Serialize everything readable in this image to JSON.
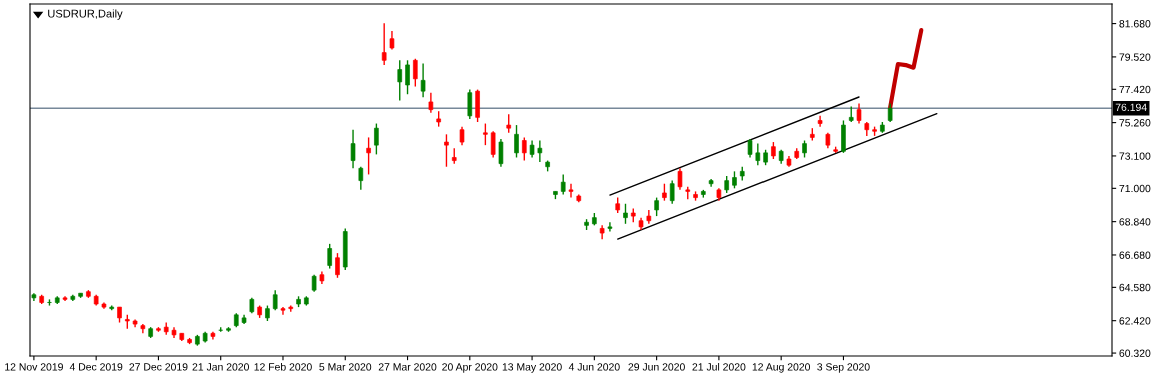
{
  "chart_data": {
    "type": "candlestick",
    "title": "USDRUR,Daily",
    "categories": [
      "12 Nov 2019",
      null,
      null,
      null,
      null,
      null,
      null,
      null,
      "4 Dec 2019",
      null,
      null,
      null,
      null,
      null,
      null,
      null,
      "27 Dec 2019",
      null,
      null,
      null,
      null,
      null,
      null,
      null,
      "21 Jan 2020",
      null,
      null,
      null,
      null,
      null,
      null,
      null,
      "12 Feb 2020",
      null,
      null,
      null,
      null,
      null,
      null,
      null,
      "5 Mar 2020",
      null,
      null,
      null,
      null,
      null,
      null,
      null,
      "27 Mar 2020",
      null,
      null,
      null,
      null,
      null,
      null,
      null,
      "20 Apr 2020",
      null,
      null,
      null,
      null,
      null,
      null,
      null,
      "13 May 2020",
      null,
      null,
      null,
      null,
      null,
      null,
      null,
      "4 Jun 2020",
      null,
      null,
      null,
      null,
      null,
      null,
      null,
      "29 Jun 2020",
      null,
      null,
      null,
      null,
      null,
      null,
      null,
      "21 Jul 2020",
      null,
      null,
      null,
      null,
      null,
      null,
      null,
      "12 Aug 2020",
      null,
      null,
      null,
      null,
      null,
      null,
      null,
      "3 Sep 2020",
      null,
      null,
      null,
      null,
      null,
      null,
      null,
      null,
      null,
      null,
      null,
      null,
      null,
      null,
      null,
      null,
      null,
      null,
      null,
      null,
      null,
      null,
      null,
      null,
      null,
      null,
      null,
      null,
      null,
      null,
      null,
      null,
      null,
      null
    ],
    "ohlc": [
      [
        63.9,
        64.2,
        63.7,
        64.1
      ],
      [
        64.0,
        64.1,
        63.5,
        63.6
      ],
      [
        63.6,
        63.8,
        63.4,
        63.6
      ],
      [
        63.6,
        64.0,
        63.5,
        63.9
      ],
      [
        63.9,
        64.0,
        63.7,
        63.8
      ],
      [
        63.8,
        64.1,
        63.7,
        64.0
      ],
      [
        64.0,
        64.2,
        63.9,
        64.2
      ],
      [
        64.3,
        64.4,
        63.9,
        64.0
      ],
      [
        64.0,
        64.1,
        63.4,
        63.5
      ],
      [
        63.5,
        63.6,
        63.2,
        63.3
      ],
      [
        63.2,
        63.4,
        63.1,
        63.3
      ],
      [
        63.3,
        63.3,
        62.3,
        62.6
      ],
      [
        62.5,
        62.8,
        61.9,
        62.4
      ],
      [
        62.4,
        62.5,
        62.0,
        62.2
      ],
      [
        62.1,
        62.2,
        61.6,
        61.9
      ],
      [
        61.4,
        62.0,
        61.3,
        61.9
      ],
      [
        61.9,
        62.0,
        61.7,
        61.8
      ],
      [
        62.0,
        62.3,
        61.5,
        61.7
      ],
      [
        61.8,
        62.0,
        61.3,
        61.5
      ],
      [
        61.6,
        61.6,
        61.1,
        61.2
      ],
      [
        61.2,
        61.3,
        60.9,
        61.0
      ],
      [
        60.9,
        61.5,
        60.8,
        61.4
      ],
      [
        61.1,
        61.7,
        61.0,
        61.6
      ],
      [
        61.6,
        61.7,
        61.2,
        61.4
      ],
      [
        61.8,
        62.0,
        61.7,
        61.8
      ],
      [
        61.8,
        62.0,
        61.7,
        61.9
      ],
      [
        62.1,
        62.9,
        62.0,
        62.8
      ],
      [
        62.3,
        62.8,
        62.2,
        62.6
      ],
      [
        63.0,
        63.9,
        62.9,
        63.8
      ],
      [
        63.3,
        63.4,
        62.6,
        62.8
      ],
      [
        62.6,
        63.4,
        62.4,
        63.2
      ],
      [
        63.2,
        64.4,
        63.1,
        64.1
      ],
      [
        63.2,
        63.3,
        62.8,
        63.1
      ],
      [
        63.3,
        63.4,
        63.0,
        63.2
      ],
      [
        63.5,
        64.0,
        63.3,
        63.8
      ],
      [
        63.5,
        64.0,
        63.4,
        63.9
      ],
      [
        64.4,
        65.4,
        64.3,
        65.3
      ],
      [
        65.4,
        65.6,
        64.8,
        65.0
      ],
      [
        66.0,
        67.4,
        65.8,
        67.1
      ],
      [
        66.5,
        66.8,
        65.2,
        65.4
      ],
      [
        65.9,
        68.4,
        65.7,
        68.2
      ],
      [
        72.8,
        74.8,
        72.3,
        73.9
      ],
      [
        71.5,
        72.4,
        70.9,
        72.3
      ],
      [
        73.6,
        74.3,
        71.9,
        73.3
      ],
      [
        73.8,
        75.2,
        73.2,
        74.9
      ],
      [
        79.8,
        81.7,
        79.0,
        79.3
      ],
      [
        80.7,
        81.2,
        80.0,
        80.1
      ],
      [
        77.9,
        79.3,
        76.7,
        78.7
      ],
      [
        77.7,
        79.3,
        77.1,
        79.0
      ],
      [
        79.3,
        79.4,
        77.6,
        78.1
      ],
      [
        77.3,
        79.1,
        76.9,
        78.0
      ],
      [
        76.6,
        77.2,
        75.9,
        76.1
      ],
      [
        75.5,
        76.0,
        75.0,
        75.3
      ],
      [
        74.0,
        74.5,
        72.4,
        73.8
      ],
      [
        73.0,
        73.6,
        72.6,
        72.8
      ],
      [
        74.8,
        75.0,
        73.8,
        74.0
      ],
      [
        75.7,
        77.4,
        75.5,
        77.2
      ],
      [
        77.3,
        77.4,
        75.3,
        75.6
      ],
      [
        74.6,
        75.2,
        73.8,
        74.5
      ],
      [
        74.6,
        74.7,
        73.0,
        73.2
      ],
      [
        72.6,
        74.2,
        72.4,
        74.0
      ],
      [
        75.1,
        75.8,
        74.6,
        74.9
      ],
      [
        73.3,
        75.1,
        73.0,
        74.5
      ],
      [
        74.1,
        74.3,
        72.8,
        73.3
      ],
      [
        73.2,
        74.1,
        73.0,
        73.8
      ],
      [
        73.3,
        74.1,
        72.7,
        73.6
      ],
      [
        72.4,
        72.8,
        72.1,
        72.7
      ],
      [
        70.6,
        70.8,
        70.3,
        70.8
      ],
      [
        70.8,
        71.9,
        70.6,
        71.4
      ],
      [
        70.9,
        71.3,
        70.4,
        70.8
      ],
      [
        70.5,
        70.6,
        70.1,
        70.2
      ],
      [
        68.6,
        69.0,
        68.3,
        68.8
      ],
      [
        68.7,
        69.4,
        68.6,
        69.1
      ],
      [
        68.4,
        68.6,
        67.7,
        68.1
      ],
      [
        68.4,
        68.8,
        68.2,
        68.5
      ],
      [
        70.0,
        70.4,
        69.4,
        69.6
      ],
      [
        69.1,
        70.0,
        68.7,
        69.4
      ],
      [
        69.4,
        69.7,
        68.8,
        69.2
      ],
      [
        68.9,
        69.1,
        68.3,
        68.5
      ],
      [
        69.2,
        69.6,
        68.7,
        68.9
      ],
      [
        69.6,
        70.4,
        69.2,
        70.2
      ],
      [
        70.7,
        71.3,
        70.2,
        70.4
      ],
      [
        70.2,
        71.5,
        70.0,
        71.3
      ],
      [
        72.1,
        72.3,
        70.9,
        71.1
      ],
      [
        70.9,
        71.1,
        70.3,
        70.8
      ],
      [
        70.6,
        70.8,
        70.2,
        70.4
      ],
      [
        70.6,
        70.9,
        70.4,
        70.8
      ],
      [
        71.3,
        71.6,
        71.1,
        71.5
      ],
      [
        70.9,
        71.0,
        70.2,
        70.4
      ],
      [
        70.9,
        71.8,
        70.7,
        71.5
      ],
      [
        71.2,
        72.1,
        71.0,
        71.7
      ],
      [
        71.8,
        72.4,
        71.5,
        72.1
      ],
      [
        73.2,
        74.2,
        73.0,
        74.1
      ],
      [
        72.8,
        73.9,
        72.5,
        73.3
      ],
      [
        72.7,
        73.5,
        72.5,
        73.3
      ],
      [
        73.7,
        74.0,
        72.9,
        73.1
      ],
      [
        72.8,
        73.5,
        72.6,
        73.4
      ],
      [
        72.9,
        73.1,
        72.4,
        72.5
      ],
      [
        73.4,
        73.6,
        72.9,
        73.0
      ],
      [
        73.3,
        74.1,
        73.0,
        73.9
      ],
      [
        74.5,
        74.9,
        74.1,
        74.3
      ],
      [
        75.4,
        75.7,
        75.0,
        75.2
      ],
      [
        74.5,
        74.6,
        73.6,
        73.8
      ],
      [
        73.5,
        73.7,
        73.3,
        73.4
      ],
      [
        73.4,
        75.4,
        73.3,
        75.1
      ],
      [
        75.4,
        76.3,
        75.3,
        75.6
      ],
      [
        76.1,
        76.5,
        75.2,
        75.4
      ],
      [
        75.2,
        75.3,
        74.4,
        74.8
      ],
      [
        74.8,
        75.0,
        74.4,
        74.7
      ],
      [
        74.7,
        75.3,
        74.6,
        75.1
      ],
      [
        75.4,
        76.5,
        75.3,
        76.19
      ],
      null,
      null,
      null,
      null,
      null,
      null,
      null,
      null,
      null,
      null,
      null,
      null,
      null,
      null,
      null,
      null,
      null,
      null,
      null,
      null,
      null,
      null,
      null,
      null,
      null,
      null,
      null,
      null
    ],
    "colors": [
      "#008000",
      "#ff0000",
      "#008000",
      "#008000",
      "#ff0000",
      "#008000",
      "#008000",
      "#ff0000",
      "#ff0000",
      "#ff0000",
      "#008000",
      "#ff0000",
      "#ff0000",
      "#ff0000",
      "#ff0000",
      "#008000",
      "#ff0000",
      "#ff0000",
      "#ff0000",
      "#ff0000",
      "#ff0000",
      "#008000",
      "#008000",
      "#ff0000",
      "#008000",
      "#008000",
      "#008000",
      "#008000",
      "#008000",
      "#ff0000",
      "#008000",
      "#008000",
      "#ff0000",
      "#ff0000",
      "#008000",
      "#008000",
      "#008000",
      "#ff0000",
      "#008000",
      "#ff0000",
      "#008000",
      "#008000",
      "#008000",
      "#ff0000",
      "#008000",
      "#ff0000",
      "#ff0000",
      "#008000",
      "#008000",
      "#ff0000",
      "#008000",
      "#ff0000",
      "#ff0000",
      "#ff0000",
      "#ff0000",
      "#ff0000",
      "#008000",
      "#ff0000",
      "#ff0000",
      "#ff0000",
      "#008000",
      "#ff0000",
      "#008000",
      "#ff0000",
      "#008000",
      "#008000",
      "#008000",
      "#008000",
      "#008000",
      "#ff0000",
      "#ff0000",
      "#008000",
      "#008000",
      "#ff0000",
      "#008000",
      "#ff0000",
      "#008000",
      "#ff0000",
      "#ff0000",
      "#ff0000",
      "#008000",
      "#ff0000",
      "#008000",
      "#ff0000",
      "#ff0000",
      "#ff0000",
      "#008000",
      "#008000",
      "#ff0000",
      "#008000",
      "#008000",
      "#008000",
      "#008000",
      "#008000",
      "#008000",
      "#ff0000",
      "#008000",
      "#ff0000",
      "#ff0000",
      "#008000",
      "#ff0000",
      "#ff0000",
      "#ff0000",
      "#ff0000",
      "#008000",
      "#008000",
      "#ff0000",
      "#ff0000",
      "#ff0000",
      "#008000",
      "#008000",
      null,
      null,
      null,
      null,
      null,
      null,
      null,
      null,
      null,
      null,
      null,
      null,
      null,
      null,
      null,
      null,
      null,
      null,
      null,
      null,
      null,
      null,
      null,
      null,
      null,
      null,
      null,
      null
    ],
    "series": [
      {
        "type": "line",
        "color": "#000000",
        "values": [
          null,
          null,
          null,
          null,
          null,
          null,
          null,
          null,
          null,
          null,
          null,
          null,
          null,
          null,
          null,
          null,
          null,
          null,
          null,
          null,
          null,
          null,
          null,
          null,
          null,
          null,
          null,
          null,
          null,
          null,
          null,
          null,
          null,
          null,
          null,
          null,
          null,
          null,
          null,
          null,
          null,
          null,
          null,
          null,
          null,
          null,
          null,
          null,
          null,
          null,
          null,
          null,
          null,
          null,
          null,
          null,
          null,
          null,
          null,
          null,
          null,
          null,
          null,
          null,
          null,
          null,
          null,
          null,
          null,
          null,
          null,
          null,
          null,
          null,
          70.56,
          null,
          null,
          null,
          null,
          null,
          null,
          null,
          null,
          null,
          null,
          null,
          null,
          null,
          null,
          null,
          null,
          null,
          null,
          null,
          null,
          null,
          null,
          null,
          null,
          null,
          null,
          null,
          null,
          null,
          null,
          null,
          76.92,
          null,
          null,
          null,
          null,
          null,
          null,
          null,
          null,
          null,
          null,
          null,
          null,
          null,
          null,
          null,
          null,
          null,
          null,
          null,
          null,
          null,
          null,
          null,
          null,
          null,
          null,
          null,
          null,
          null,
          null,
          null,
          null
        ]
      },
      {
        "type": "line",
        "color": "#000000",
        "values": [
          null,
          null,
          null,
          null,
          null,
          null,
          null,
          null,
          null,
          null,
          null,
          null,
          null,
          null,
          null,
          null,
          null,
          null,
          null,
          null,
          null,
          null,
          null,
          null,
          null,
          null,
          null,
          null,
          null,
          null,
          null,
          null,
          null,
          null,
          null,
          null,
          null,
          null,
          null,
          null,
          null,
          null,
          null,
          null,
          null,
          null,
          null,
          null,
          null,
          null,
          null,
          null,
          null,
          null,
          null,
          null,
          null,
          null,
          null,
          null,
          null,
          null,
          null,
          null,
          null,
          null,
          null,
          null,
          null,
          null,
          null,
          null,
          null,
          null,
          null,
          67.71,
          null,
          null,
          null,
          null,
          null,
          null,
          null,
          null,
          null,
          null,
          null,
          null,
          null,
          null,
          null,
          null,
          null,
          null,
          null,
          null,
          null,
          null,
          null,
          null,
          null,
          null,
          null,
          null,
          null,
          null,
          null,
          null,
          null,
          null,
          null,
          null,
          null,
          null,
          null,
          null,
          75.84,
          null,
          null,
          null,
          null,
          null,
          null,
          null,
          null,
          null,
          null,
          null,
          null,
          null,
          null,
          null,
          null,
          null,
          null,
          null,
          null,
          null,
          null
        ]
      },
      {
        "type": "line",
        "color": "#c00000",
        "values": [
          null,
          null,
          null,
          null,
          null,
          null,
          null,
          null,
          null,
          null,
          null,
          null,
          null,
          null,
          null,
          null,
          null,
          null,
          null,
          null,
          null,
          null,
          null,
          null,
          null,
          null,
          null,
          null,
          null,
          null,
          null,
          null,
          null,
          null,
          null,
          null,
          null,
          null,
          null,
          null,
          null,
          null,
          null,
          null,
          null,
          null,
          null,
          null,
          null,
          null,
          null,
          null,
          null,
          null,
          null,
          null,
          null,
          null,
          null,
          null,
          null,
          null,
          null,
          null,
          null,
          null,
          null,
          null,
          null,
          null,
          null,
          null,
          null,
          null,
          null,
          null,
          null,
          null,
          null,
          null,
          null,
          null,
          null,
          null,
          null,
          null,
          null,
          null,
          null,
          null,
          null,
          null,
          null,
          null,
          null,
          null,
          null,
          null,
          null,
          null,
          null,
          null,
          null,
          null,
          null,
          null,
          null,
          null,
          null,
          null,
          76.23,
          79.06,
          78.99,
          78.82,
          81.26,
          null,
          null,
          null,
          null,
          null,
          null,
          null,
          null,
          null,
          null,
          null,
          null,
          null,
          null,
          null,
          null,
          null,
          null,
          null,
          null,
          null,
          null,
          null,
          null
        ]
      }
    ],
    "ylim": [
      60.13,
      82.95
    ],
    "yticks": [
      {
        "value": 60.32,
        "label": "60.320"
      },
      {
        "value": 62.42,
        "label": "62.420"
      },
      {
        "value": 64.58,
        "label": "64.580"
      },
      {
        "value": 66.68,
        "label": "66.680"
      },
      {
        "value": 68.84,
        "label": "68.840"
      },
      {
        "value": 71.0,
        "label": "71.000"
      },
      {
        "value": 73.1,
        "label": "73.100"
      },
      {
        "value": 75.26,
        "label": "75.260"
      },
      {
        "value": 77.42,
        "label": "77.420"
      },
      {
        "value": 79.52,
        "label": "79.520"
      },
      {
        "value": 81.68,
        "label": "81.680"
      }
    ],
    "ref_lines": [
      {
        "axis": "y",
        "value": 76.194,
        "label": "76.194",
        "color": "#778899"
      }
    ],
    "grid": false,
    "legend": false
  }
}
